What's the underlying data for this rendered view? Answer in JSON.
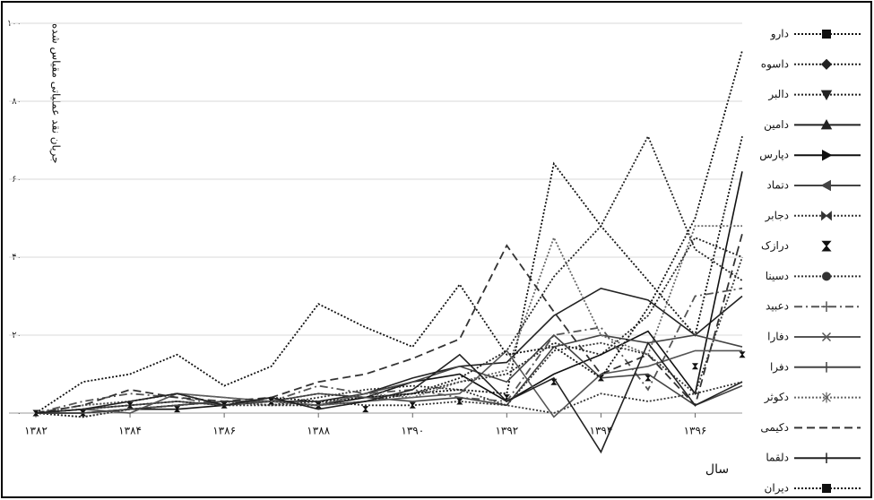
{
  "chart_data": {
    "type": "line",
    "y_label": "جریان نقد عملیاتی مقیاس شده",
    "x_label": "سال",
    "x": [
      1382,
      1383,
      1384,
      1385,
      1386,
      1387,
      1388,
      1389,
      1390,
      1391,
      1392,
      1393,
      1394,
      1395,
      1396,
      1397
    ],
    "xlim": [
      1382,
      1397
    ],
    "xticks": [
      {
        "value": 1382,
        "label": "۱۳۸۲"
      },
      {
        "value": 1384,
        "label": "۱۳۸۴"
      },
      {
        "value": 1386,
        "label": "۱۳۸۶"
      },
      {
        "value": 1388,
        "label": "۱۳۸۸"
      },
      {
        "value": 1390,
        "label": "۱۳۹۰"
      },
      {
        "value": 1392,
        "label": "۱۳۹۲"
      },
      {
        "value": 1394,
        "label": "۱۳۹۴"
      },
      {
        "value": 1396,
        "label": "۱۳۹۶"
      }
    ],
    "ylim": [
      -20,
      100
    ],
    "yticks": [
      {
        "value": 0,
        "label": "۰"
      },
      {
        "value": 20,
        "label": "۲۰"
      },
      {
        "value": 40,
        "label": "۴۰"
      },
      {
        "value": 60,
        "label": "۶۰"
      },
      {
        "value": 80,
        "label": "۸۰"
      },
      {
        "value": 100,
        "label": "۱۰۰"
      }
    ],
    "grid": true,
    "legend": "right",
    "series": [
      {
        "name": "دارو",
        "color": "#111111",
        "dash": "dotted",
        "marker": "square",
        "values": [
          0,
          1,
          2,
          3,
          2,
          3,
          5,
          4,
          5,
          6,
          5,
          64,
          48,
          34,
          20,
          71
        ]
      },
      {
        "name": "داسوه",
        "color": "#222222",
        "dash": "dotted",
        "marker": "diamond",
        "values": [
          0,
          2,
          3,
          5,
          2,
          4,
          3,
          4,
          5,
          8,
          10,
          18,
          15,
          25,
          45,
          40
        ]
      },
      {
        "name": "دالبر",
        "color": "#222222",
        "dash": "dotted",
        "marker": "triangle-down",
        "values": [
          0,
          -1,
          1,
          2,
          3,
          2,
          2,
          3,
          5,
          9,
          16,
          35,
          48,
          71,
          42,
          34
        ]
      },
      {
        "name": "دامین",
        "color": "#222222",
        "dash": "solid",
        "marker": "triangle",
        "values": [
          0,
          0,
          1,
          2,
          3,
          3,
          3,
          5,
          9,
          12,
          13,
          25,
          32,
          29,
          20,
          30
        ]
      },
      {
        "name": "دپارس",
        "color": "#111111",
        "dash": "solid",
        "marker": "triangle-right",
        "values": [
          0,
          0,
          1,
          1,
          2,
          3,
          2,
          4,
          8,
          10,
          3,
          10,
          15,
          21,
          5,
          62
        ]
      },
      {
        "name": "دتماد",
        "color": "#444444",
        "dash": "solid",
        "marker": "triangle-left",
        "values": [
          0,
          1,
          2,
          3,
          2,
          3,
          5,
          4,
          3,
          4,
          2,
          17,
          20,
          18,
          20,
          17
        ]
      },
      {
        "name": "دجابر",
        "color": "#333333",
        "dash": "dotted",
        "marker": "bowtie",
        "values": [
          0,
          1,
          2,
          3,
          2,
          2,
          3,
          2,
          2,
          3,
          2,
          0,
          5,
          3,
          5,
          8
        ]
      },
      {
        "name": "درازک",
        "color": "#111111",
        "dash": "none",
        "marker": "hourglass",
        "values": [
          0,
          0,
          2,
          1,
          2,
          3,
          2,
          1,
          2,
          3,
          4,
          8,
          9,
          9,
          12,
          15
        ]
      },
      {
        "name": "دسینا",
        "color": "#333333",
        "dash": "dotted",
        "marker": "circle",
        "values": [
          0,
          -1,
          1,
          2,
          3,
          2,
          4,
          6,
          7,
          6,
          2,
          16,
          18,
          15,
          5,
          40
        ]
      },
      {
        "name": "دعبید",
        "color": "#555555",
        "dash": "dashdot",
        "marker": "plus",
        "values": [
          0,
          3,
          5,
          4,
          2,
          3,
          7,
          5,
          6,
          4,
          3,
          20,
          22,
          6,
          30,
          32
        ]
      },
      {
        "name": "دفارا",
        "color": "#555555",
        "dash": "solid",
        "marker": "x",
        "values": [
          0,
          1,
          0,
          5,
          4,
          3,
          2,
          3,
          4,
          5,
          16,
          -1,
          10,
          12,
          16,
          16
        ]
      },
      {
        "name": "دفرا",
        "color": "#444444",
        "dash": "solid",
        "marker": "plus",
        "values": [
          0,
          0,
          1,
          2,
          3,
          3,
          2,
          5,
          8,
          12,
          8,
          20,
          9,
          10,
          2,
          7
        ]
      },
      {
        "name": "دکوثر",
        "color": "#666666",
        "dash": "dotted",
        "marker": "star",
        "values": [
          0,
          2,
          3,
          5,
          4,
          3,
          2,
          5,
          4,
          8,
          11,
          45,
          20,
          15,
          48,
          48
        ]
      },
      {
        "name": "دکیمی",
        "color": "#333333",
        "dash": "dashed",
        "marker": "none",
        "values": [
          0,
          2,
          6,
          4,
          3,
          4,
          8,
          10,
          14,
          19,
          43,
          26,
          10,
          15,
          2,
          46
        ]
      },
      {
        "name": "دلقما",
        "color": "#222222",
        "dash": "solid",
        "marker": "plus",
        "values": [
          0,
          1,
          3,
          5,
          2,
          4,
          1,
          3,
          6,
          15,
          3,
          9,
          -10,
          18,
          2,
          8
        ]
      },
      {
        "name": "دیران",
        "color": "#111111",
        "dash": "dotted",
        "marker": "square",
        "values": [
          0,
          8,
          10,
          15,
          7,
          12,
          28,
          22,
          17,
          33,
          15,
          17,
          9,
          27,
          50,
          93
        ]
      }
    ]
  }
}
